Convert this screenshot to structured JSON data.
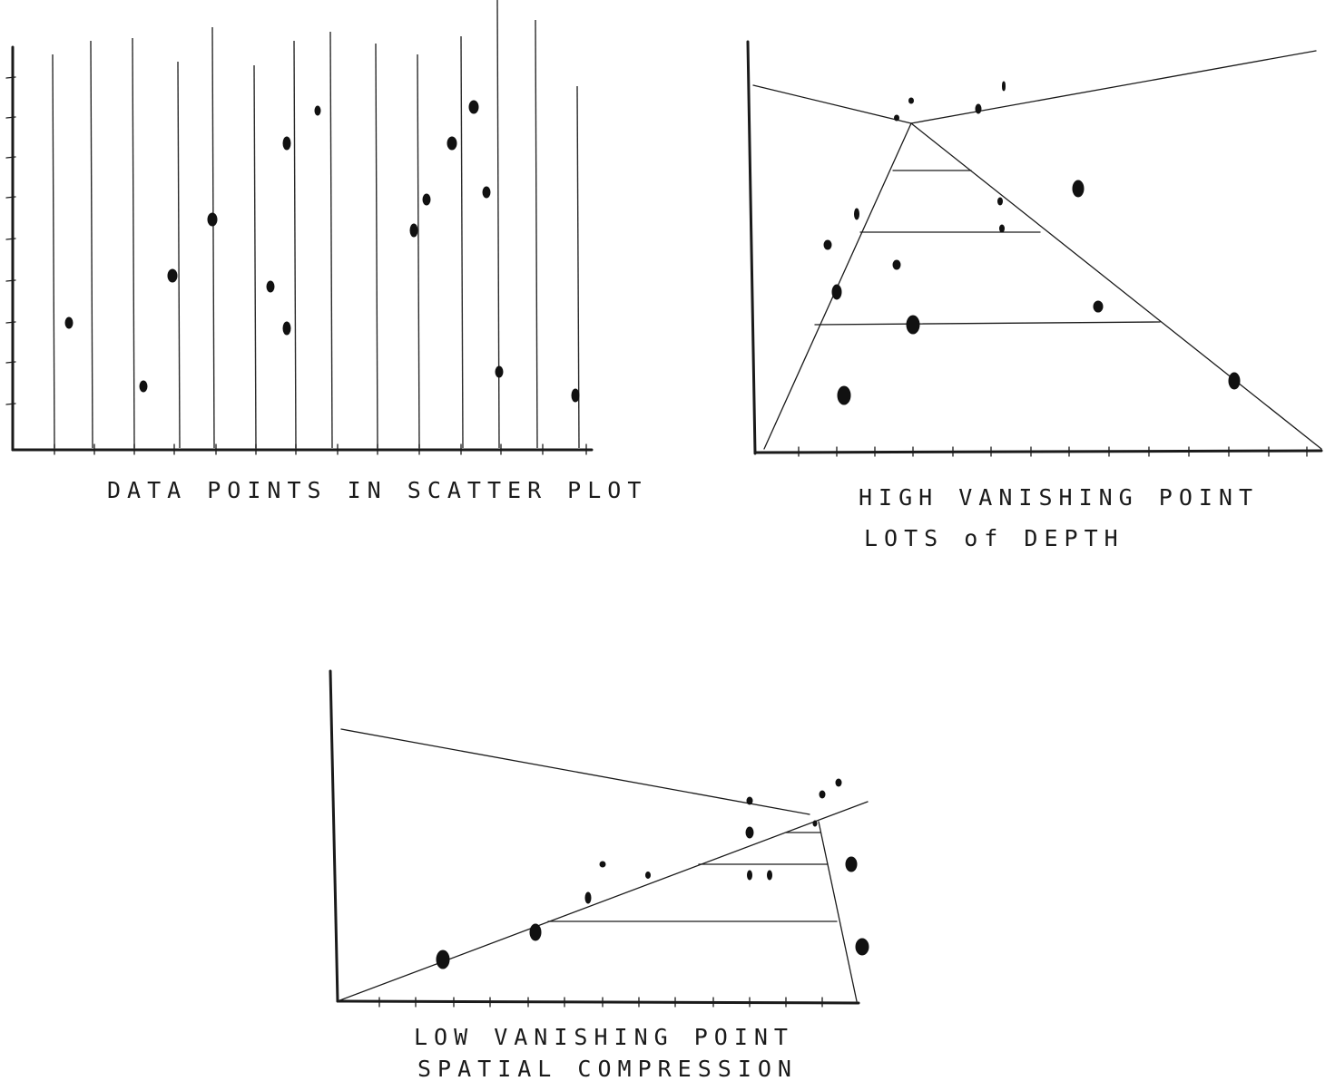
{
  "panels": [
    {
      "id": "scatter",
      "caption_lines": [
        "DATA POINTS IN SCATTER PLOT"
      ]
    },
    {
      "id": "high-vanishing",
      "caption_lines": [
        "HIGH VANISHING POINT",
        "LOTS of DEPTH"
      ]
    },
    {
      "id": "low-vanishing",
      "caption_lines": [
        "LOW VANISHING POINT",
        "SPATIAL COMPRESSION"
      ]
    }
  ]
}
